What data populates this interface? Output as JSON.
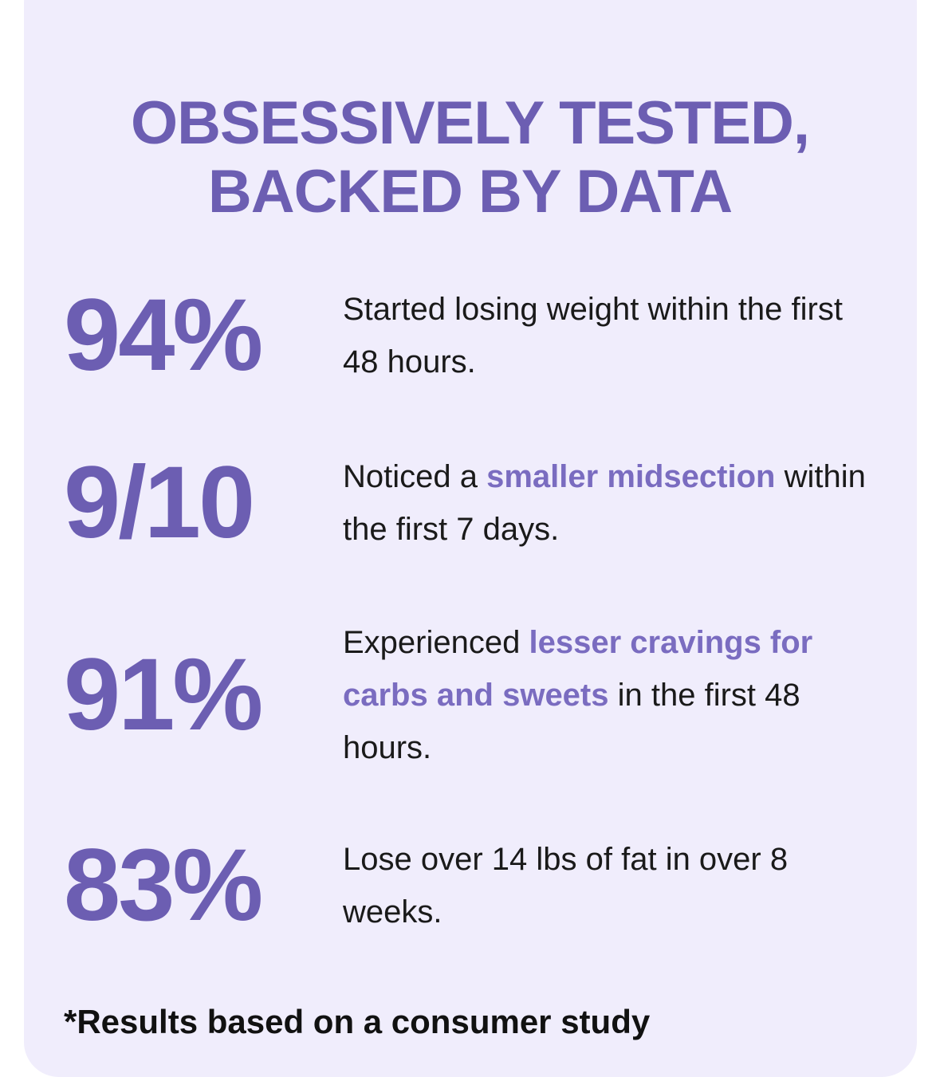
{
  "header": {
    "title_lines": [
      "OBSESSIVELY TESTED,",
      "BACKED BY DATA"
    ]
  },
  "stats": [
    {
      "value": "94%",
      "text": [
        {
          "text": "Started losing weight within the first 48 hours.",
          "emphasis": false
        }
      ]
    },
    {
      "value": "9/10",
      "text": [
        {
          "text": "Noticed a",
          "emphasis": false
        },
        {
          "text": "smaller midsection",
          "emphasis": true
        },
        {
          "text": "within the first 7 days.",
          "emphasis": false
        }
      ]
    },
    {
      "value": "91%",
      "text": [
        {
          "text": "Experienced",
          "emphasis": false
        },
        {
          "text": "lesser cravings for carbs and sweets",
          "emphasis": true
        },
        {
          "text": "in the first 48 hours.",
          "emphasis": false
        }
      ]
    },
    {
      "value": "83%",
      "text": [
        {
          "text": "Lose over 14 lbs of fat in over 8 weeks.",
          "emphasis": false
        }
      ]
    }
  ],
  "footnote": "*Results based on a consumer study"
}
